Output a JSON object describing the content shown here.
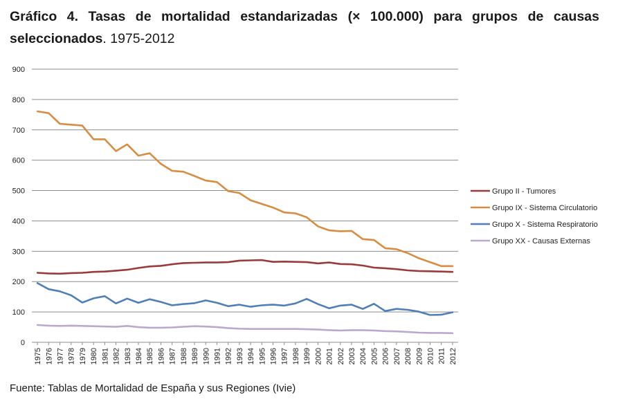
{
  "title": {
    "bold": "Gráfico 4. Tasas de mortalidad estandarizadas (× 100.000) para grupos de causas seleccionados",
    "rest": ". 1975-2012"
  },
  "source": "Fuente: Tablas de Mortalidad de España y sus Regiones (Ivie)",
  "colors": {
    "tumores": "#9b3a3a",
    "circulatorio": "#d98b3f",
    "respiratorio": "#4e7fb8",
    "externas": "#b9a9cf",
    "grid": "#8c8c8c"
  },
  "chart_data": {
    "type": "line",
    "title": "Tasas de mortalidad estandarizadas (× 100.000) para grupos de causas seleccionados",
    "xlabel": "",
    "ylabel": "",
    "ylim": [
      0,
      900
    ],
    "yticks": [
      0,
      100,
      200,
      300,
      400,
      500,
      600,
      700,
      800,
      900
    ],
    "grid": true,
    "legend_position": "right",
    "x": [
      "1975",
      "1976",
      "1977",
      "1978",
      "1979",
      "1980",
      "1981",
      "1982",
      "1983",
      "1984",
      "1985",
      "1986",
      "1987",
      "1988",
      "1989",
      "1990",
      "1991",
      "1992",
      "1993",
      "1994",
      "1995",
      "1996",
      "1997",
      "1998",
      "1999",
      "2000",
      "2001",
      "2002",
      "2003",
      "2004",
      "2005",
      "2006",
      "2007",
      "2008",
      "2009",
      "2010",
      "2011",
      "2012"
    ],
    "series": [
      {
        "name": "Grupo II - Tumores",
        "color_key": "tumores",
        "values": [
          229,
          227,
          226,
          228,
          229,
          232,
          233,
          236,
          239,
          245,
          250,
          252,
          257,
          261,
          262,
          263,
          263,
          264,
          269,
          270,
          271,
          265,
          266,
          265,
          264,
          260,
          263,
          258,
          257,
          253,
          246,
          244,
          241,
          237,
          235,
          234,
          233,
          232
        ]
      },
      {
        "name": "Grupo IX - Sistema Circulatorio",
        "color_key": "circulatorio",
        "values": [
          761,
          755,
          720,
          717,
          714,
          669,
          669,
          630,
          652,
          615,
          623,
          588,
          565,
          562,
          548,
          533,
          528,
          498,
          492,
          468,
          456,
          444,
          428,
          425,
          412,
          382,
          369,
          366,
          367,
          340,
          337,
          310,
          307,
          294,
          277,
          264,
          251,
          251
        ]
      },
      {
        "name": "Grupo X - Sistema Respiratorio",
        "color_key": "respiratorio",
        "values": [
          195,
          175,
          168,
          155,
          131,
          145,
          152,
          128,
          144,
          130,
          142,
          133,
          122,
          126,
          129,
          138,
          130,
          119,
          124,
          117,
          122,
          124,
          121,
          128,
          143,
          126,
          112,
          121,
          124,
          110,
          127,
          103,
          110,
          107,
          101,
          90,
          91,
          99
        ]
      },
      {
        "name": "Grupo XX - Causas Externas",
        "color_key": "externas",
        "values": [
          57,
          55,
          54,
          55,
          54,
          53,
          52,
          51,
          54,
          50,
          48,
          48,
          49,
          51,
          53,
          52,
          50,
          47,
          45,
          44,
          44,
          44,
          44,
          44,
          43,
          42,
          40,
          39,
          40,
          40,
          39,
          37,
          36,
          34,
          32,
          31,
          31,
          30
        ]
      }
    ]
  }
}
